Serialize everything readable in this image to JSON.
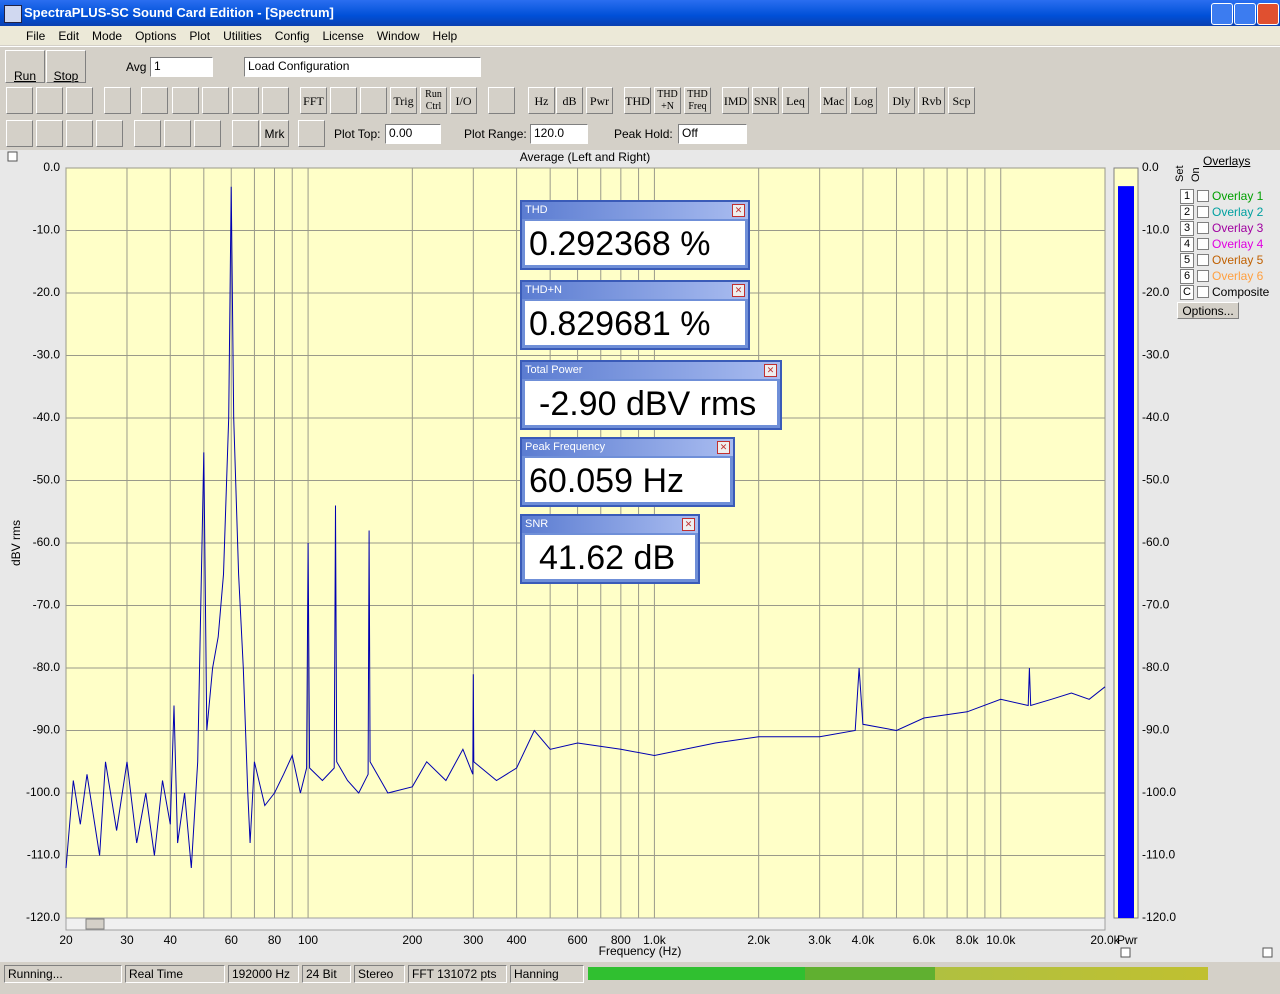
{
  "window": {
    "title": "SpectraPLUS-SC Sound Card Edition - [Spectrum]",
    "menu": [
      "File",
      "Edit",
      "Mode",
      "Options",
      "Plot",
      "Utilities",
      "Config",
      "License",
      "Window",
      "Help"
    ]
  },
  "toolbar": {
    "run": "Run",
    "stop": "Stop",
    "avg_label": "Avg",
    "avg_value": "1",
    "config": "Load Configuration",
    "buttons": [
      "FFT",
      "Trig",
      "Run Ctrl",
      "I/O",
      "Hz",
      "dB",
      "Pwr",
      "THD",
      "THD +N",
      "THD Freq",
      "IMD",
      "SNR",
      "Leq",
      "Mac",
      "Log",
      "Dly",
      "Rvb",
      "Scp"
    ],
    "mrk": "Mrk",
    "plot_top_label": "Plot Top:",
    "plot_top": "0.00",
    "plot_range_label": "Plot Range:",
    "plot_range": "120.0",
    "peak_hold_label": "Peak Hold:",
    "peak_hold": "Off"
  },
  "chart_data": {
    "type": "line",
    "title": "Average (Left and Right)",
    "x_label": "Frequency (Hz)",
    "y_label": "dBV rms",
    "log_x": true,
    "grid": true,
    "xlim": [
      20,
      20000
    ],
    "ylim": [
      -120,
      0
    ],
    "xticks": [
      20,
      30,
      40,
      60,
      80,
      100,
      200,
      300,
      400,
      600,
      800,
      {
        "value": 1000,
        "label": "1.0k"
      },
      {
        "value": 2000,
        "label": "2.0k"
      },
      {
        "value": 3000,
        "label": "3.0k"
      },
      {
        "value": 4000,
        "label": "4.0k"
      },
      {
        "value": 6000,
        "label": "6.0k"
      },
      {
        "value": 8000,
        "label": "8.0k"
      },
      {
        "value": 10000,
        "label": "10.0k"
      },
      {
        "value": 20000,
        "label": "20.0k"
      }
    ],
    "xgrid_minor": [
      50,
      70,
      90,
      500,
      700,
      900,
      5000,
      7000,
      9000
    ],
    "yticks": [
      {
        "value": 0,
        "label": "0.0"
      },
      {
        "value": -10,
        "label": "-10.0"
      },
      {
        "value": -20,
        "label": "-20.0"
      },
      {
        "value": -30,
        "label": "-30.0"
      },
      {
        "value": -40,
        "label": "-40.0"
      },
      {
        "value": -50,
        "label": "-50.0"
      },
      {
        "value": -60,
        "label": "-60.0"
      },
      {
        "value": -70,
        "label": "-70.0"
      },
      {
        "value": -80,
        "label": "-80.0"
      },
      {
        "value": -90,
        "label": "-90.0"
      },
      {
        "value": -100,
        "label": "-100.0"
      },
      {
        "value": -110,
        "label": "-110.0"
      },
      {
        "value": -120,
        "label": "-120.0"
      }
    ],
    "x": [
      20,
      21,
      22,
      23,
      25,
      26,
      28,
      30,
      32,
      34,
      36,
      38,
      40,
      41,
      42,
      44,
      46,
      48,
      50,
      51,
      53,
      55,
      57,
      59,
      60,
      61,
      63,
      65,
      67,
      68,
      70,
      75,
      80,
      85,
      90,
      95,
      99,
      100,
      101,
      110,
      119,
      120,
      121,
      130,
      140,
      149,
      150,
      151,
      170,
      200,
      220,
      250,
      280,
      299,
      300,
      301,
      350,
      400,
      450,
      500,
      600,
      800,
      1000,
      1500,
      2000,
      3000,
      3800,
      3900,
      4000,
      5000,
      6000,
      8000,
      10000,
      12000,
      12100,
      12200,
      14000,
      16000,
      18000,
      20000
    ],
    "series": [
      {
        "color": "#0000b0",
        "values": [
          -112,
          -98,
          -105,
          -97,
          -110,
          -95,
          -106,
          -95,
          -108,
          -100,
          -110,
          -98,
          -105,
          -86,
          -108,
          -100,
          -112,
          -95,
          -45.5,
          -90,
          -80,
          -75,
          -65,
          -40,
          -3,
          -40,
          -65,
          -80,
          -100,
          -108,
          -95,
          -102,
          -100,
          -97,
          -94,
          -100,
          -96,
          -60,
          -96,
          -98,
          -96,
          -54,
          -95,
          -98,
          -100,
          -97,
          -58,
          -95,
          -100,
          -99,
          -95,
          -98,
          -93,
          -97,
          -81,
          -95,
          -98,
          -96,
          -90,
          -93,
          -92,
          -93,
          -94,
          -92,
          -91,
          -91,
          -90,
          -80,
          -89,
          -90,
          -88,
          -87,
          -85,
          -86,
          -80,
          -86,
          -85,
          -84,
          -85,
          -83
        ]
      }
    ],
    "meter": {
      "label": "Pwr",
      "value": -2.9,
      "color": "#0000ff"
    }
  },
  "readouts": [
    {
      "title": "THD",
      "value": "0.292368 %"
    },
    {
      "title": "THD+N",
      "value": "0.829681 %"
    },
    {
      "title": "Total Power",
      "value": "-2.90 dBV rms"
    },
    {
      "title": "Peak Frequency",
      "value": "60.059 Hz"
    },
    {
      "title": "SNR",
      "value": "41.62 dB"
    }
  ],
  "overlays": {
    "title": "Overlays",
    "set": "Set",
    "on": "On",
    "rows": [
      {
        "key": "1",
        "name": "Overlay 1",
        "color": "#00a000"
      },
      {
        "key": "2",
        "name": "Overlay 2",
        "color": "#00a0a0"
      },
      {
        "key": "3",
        "name": "Overlay 3",
        "color": "#a000a0"
      },
      {
        "key": "4",
        "name": "Overlay 4",
        "color": "#e000e0"
      },
      {
        "key": "5",
        "name": "Overlay 5",
        "color": "#c06000"
      },
      {
        "key": "6",
        "name": "Overlay 6",
        "color": "#ffa040"
      },
      {
        "key": "C",
        "name": "Composite",
        "color": "#000000"
      }
    ],
    "options": "Options..."
  },
  "status": [
    "Running...",
    "Real Time",
    "192000 Hz",
    "24 Bit",
    "Stereo",
    "FFT 131072 pts",
    "Hanning"
  ]
}
